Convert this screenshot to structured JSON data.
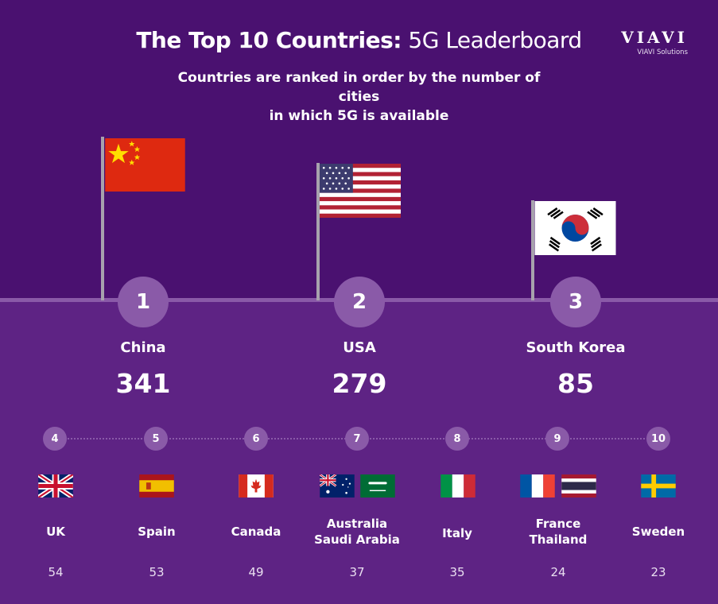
{
  "header": {
    "title_bold": "The Top 10 Countries:",
    "title_light": " 5G Leaderboard",
    "subtitle_line1": "Countries are ranked in order by the number of cities",
    "subtitle_line2": "in which 5G is available"
  },
  "logo": {
    "word": "VIAVI",
    "sub": "VIAVI Solutions"
  },
  "colors": {
    "top_bg": "#4a1170",
    "bottom_bg": "#5e2384",
    "badge": "#8a5aa8"
  },
  "podium": [
    {
      "rank": "1",
      "country": "China",
      "cities": "341",
      "flag": "china-flag"
    },
    {
      "rank": "2",
      "country": "USA",
      "cities": "279",
      "flag": "usa-flag"
    },
    {
      "rank": "3",
      "country": "South Korea",
      "cities": "85",
      "flag": "south-korea-flag"
    }
  ],
  "ranks": [
    {
      "rank": "4",
      "line1": "UK",
      "line2": "",
      "cities": "54"
    },
    {
      "rank": "5",
      "line1": "Spain",
      "line2": "",
      "cities": "53"
    },
    {
      "rank": "6",
      "line1": "Canada",
      "line2": "",
      "cities": "49"
    },
    {
      "rank": "7",
      "line1": "Australia",
      "line2": "Saudi Arabia",
      "cities": "37"
    },
    {
      "rank": "8",
      "line1": "Italy",
      "line2": "",
      "cities": "35"
    },
    {
      "rank": "9",
      "line1": "France",
      "line2": "Thailand",
      "cities": "24"
    },
    {
      "rank": "10",
      "line1": "Sweden",
      "line2": "",
      "cities": "23"
    }
  ]
}
